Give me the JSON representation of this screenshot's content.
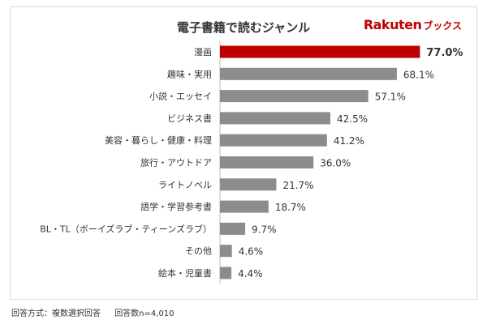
{
  "logo": {
    "brand": "Rakuten",
    "sub": "ブックス"
  },
  "footnote": {
    "method": "回答方式：複数選択回答",
    "count": "回答数n=4,010"
  },
  "colors": {
    "highlight": "#bf0000",
    "bar": "#8c8c8c",
    "axis": "#bbbbbb"
  },
  "chart_data": {
    "type": "bar",
    "orientation": "horizontal",
    "title": "電子書籍で読むジャンル",
    "categories": [
      "漫画",
      "趣味・実用",
      "小説・エッセイ",
      "ビジネス書",
      "美容・暮らし・健康・料理",
      "旅行・アウトドア",
      "ライトノベル",
      "語学・学習参考書",
      "BL・TL（ボーイズラブ・ティーンズラブ）",
      "その他",
      "絵本・児童書"
    ],
    "values": [
      77.0,
      68.1,
      57.1,
      42.5,
      41.2,
      36.0,
      21.7,
      18.7,
      9.7,
      4.6,
      4.4
    ],
    "value_labels": [
      "77.0%",
      "68.1%",
      "57.1%",
      "42.5%",
      "41.2%",
      "36.0%",
      "21.7%",
      "18.7%",
      "9.7%",
      "4.6%",
      "4.4%"
    ],
    "highlight_index": 0,
    "xlim": [
      0,
      100
    ]
  }
}
